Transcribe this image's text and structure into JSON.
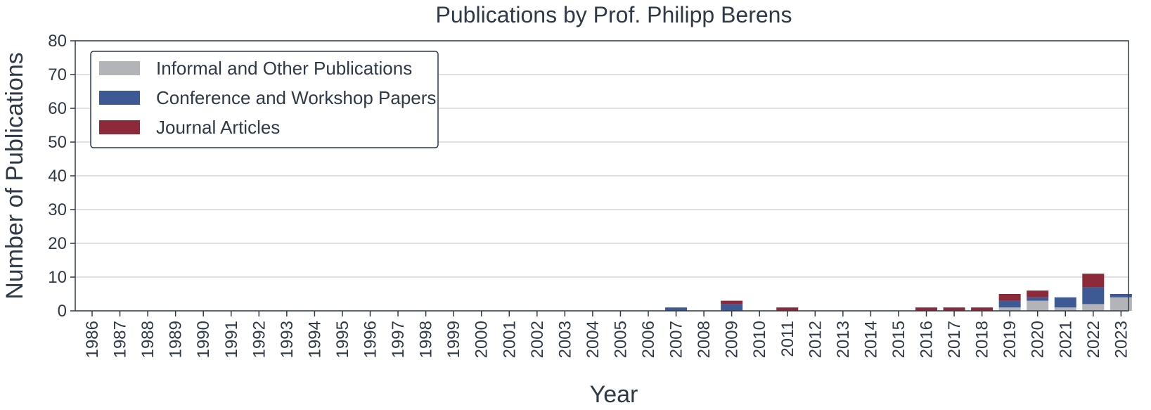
{
  "chart_data": {
    "type": "bar",
    "stacked": true,
    "title": "Publications by Prof. Philipp Berens",
    "xlabel": "Year",
    "ylabel": "Number of Publications",
    "ylim": [
      0,
      80
    ],
    "yticks": [
      0,
      10,
      20,
      30,
      40,
      50,
      60,
      70,
      80
    ],
    "grid": "y",
    "legend_position": "top-left",
    "categories": [
      "1986",
      "1987",
      "1988",
      "1989",
      "1990",
      "1991",
      "1992",
      "1993",
      "1994",
      "1995",
      "1996",
      "1997",
      "1998",
      "1999",
      "2000",
      "2001",
      "2002",
      "2003",
      "2004",
      "2005",
      "2006",
      "2007",
      "2008",
      "2009",
      "2010",
      "2011",
      "2012",
      "2013",
      "2014",
      "2015",
      "2016",
      "2017",
      "2018",
      "2019",
      "2020",
      "2021",
      "2022",
      "2023"
    ],
    "series": [
      {
        "name": "Informal and Other Publications",
        "color": "#b2b4b8",
        "values": [
          0,
          0,
          0,
          0,
          0,
          0,
          0,
          0,
          0,
          0,
          0,
          0,
          0,
          0,
          0,
          0,
          0,
          0,
          0,
          0,
          0,
          0,
          0,
          0,
          0,
          0,
          0,
          0,
          0,
          0,
          0,
          0,
          0,
          1,
          3,
          1,
          2,
          4
        ]
      },
      {
        "name": "Conference and Workshop Papers",
        "color": "#3d5a94",
        "values": [
          0,
          0,
          0,
          0,
          0,
          0,
          0,
          0,
          0,
          0,
          0,
          0,
          0,
          0,
          0,
          0,
          0,
          0,
          0,
          0,
          0,
          1,
          0,
          2,
          0,
          0,
          0,
          0,
          0,
          0,
          0,
          0,
          0,
          2,
          1,
          3,
          5,
          1
        ]
      },
      {
        "name": "Journal Articles",
        "color": "#8c2a3a",
        "values": [
          0,
          0,
          0,
          0,
          0,
          0,
          0,
          0,
          0,
          0,
          0,
          0,
          0,
          0,
          0,
          0,
          0,
          0,
          0,
          0,
          0,
          0,
          0,
          1,
          0,
          1,
          0,
          0,
          0,
          0,
          1,
          1,
          1,
          2,
          2,
          0,
          4,
          0
        ]
      }
    ]
  }
}
